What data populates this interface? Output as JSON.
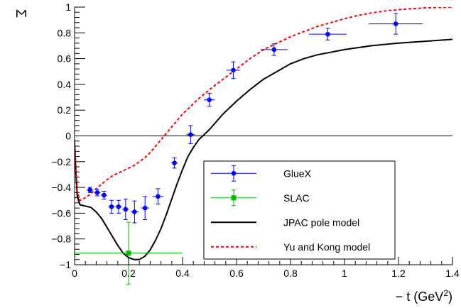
{
  "chart_data": {
    "type": "scatter",
    "ylabel_symbol": "Σ",
    "xlabel_main": "− t (GeV",
    "xlabel_sup": "2",
    "xlabel_close": ")",
    "xlim": [
      0,
      1.4
    ],
    "ylim": [
      -1,
      1
    ],
    "x_ticks": [
      {
        "value": 0,
        "label": "0"
      },
      {
        "value": 0.2,
        "label": "0.2"
      },
      {
        "value": 0.4,
        "label": "0.4"
      },
      {
        "value": 0.6,
        "label": "0.6"
      },
      {
        "value": 0.8,
        "label": "0.8"
      },
      {
        "value": 1.0,
        "label": "1"
      },
      {
        "value": 1.2,
        "label": "1.2"
      },
      {
        "value": 1.4,
        "label": "1.4"
      }
    ],
    "y_ticks": [
      {
        "value": -1,
        "label": "−1"
      },
      {
        "value": -0.8,
        "label": "−0.8"
      },
      {
        "value": -0.6,
        "label": "−0.6"
      },
      {
        "value": -0.4,
        "label": "−0.4"
      },
      {
        "value": -0.2,
        "label": "−0.2"
      },
      {
        "value": 0,
        "label": "0"
      },
      {
        "value": 0.2,
        "label": "0.2"
      },
      {
        "value": 0.4,
        "label": "0.4"
      },
      {
        "value": 0.6,
        "label": "0.6"
      },
      {
        "value": 0.8,
        "label": "0.8"
      },
      {
        "value": 1,
        "label": "1"
      }
    ],
    "zero_line": true,
    "legend_position": "bottom-right",
    "series": [
      {
        "name": "GlueX",
        "kind": "points",
        "marker": "circle",
        "color": "#0000ff",
        "points": [
          {
            "x": 0.057,
            "y": -0.42,
            "xerr": 0.012,
            "yerr": 0.02
          },
          {
            "x": 0.084,
            "y": -0.44,
            "xerr": 0.012,
            "yerr": 0.025
          },
          {
            "x": 0.109,
            "y": -0.46,
            "xerr": 0.012,
            "yerr": 0.03
          },
          {
            "x": 0.137,
            "y": -0.55,
            "xerr": 0.012,
            "yerr": 0.05
          },
          {
            "x": 0.163,
            "y": -0.55,
            "xerr": 0.012,
            "yerr": 0.05
          },
          {
            "x": 0.189,
            "y": -0.57,
            "xerr": 0.012,
            "yerr": 0.08
          },
          {
            "x": 0.222,
            "y": -0.59,
            "xerr": 0.015,
            "yerr": 0.085
          },
          {
            "x": 0.261,
            "y": -0.56,
            "xerr": 0.015,
            "yerr": 0.09
          },
          {
            "x": 0.309,
            "y": -0.47,
            "xerr": 0.02,
            "yerr": 0.06
          },
          {
            "x": 0.37,
            "y": -0.21,
            "xerr": 0.012,
            "yerr": 0.04
          },
          {
            "x": 0.43,
            "y": 0.01,
            "xerr": 0.015,
            "yerr": 0.07
          },
          {
            "x": 0.499,
            "y": 0.28,
            "xerr": 0.02,
            "yerr": 0.05
          },
          {
            "x": 0.588,
            "y": 0.51,
            "xerr": 0.025,
            "yerr": 0.065
          },
          {
            "x": 0.739,
            "y": 0.67,
            "xerr": 0.05,
            "yerr": 0.045
          },
          {
            "x": 0.938,
            "y": 0.79,
            "xerr": 0.07,
            "yerr": 0.045
          },
          {
            "x": 1.19,
            "y": 0.87,
            "xerr": 0.1,
            "yerr": 0.08
          }
        ]
      },
      {
        "name": "SLAC",
        "kind": "points",
        "marker": "square",
        "color": "#00bb00",
        "points": [
          {
            "x": 0.2,
            "y": -0.91,
            "xerr": 0.2,
            "yerr": 0.24
          }
        ]
      },
      {
        "name": "JPAC pole model",
        "kind": "line",
        "color": "#000000",
        "dash": "",
        "points": [
          {
            "x": 0.0,
            "y": -0.05
          },
          {
            "x": 0.005,
            "y": -0.3
          },
          {
            "x": 0.01,
            "y": -0.47
          },
          {
            "x": 0.02,
            "y": -0.535
          },
          {
            "x": 0.04,
            "y": -0.545
          },
          {
            "x": 0.06,
            "y": -0.555
          },
          {
            "x": 0.08,
            "y": -0.59
          },
          {
            "x": 0.1,
            "y": -0.64
          },
          {
            "x": 0.12,
            "y": -0.71
          },
          {
            "x": 0.14,
            "y": -0.78
          },
          {
            "x": 0.16,
            "y": -0.85
          },
          {
            "x": 0.18,
            "y": -0.91
          },
          {
            "x": 0.2,
            "y": -0.945
          },
          {
            "x": 0.22,
            "y": -0.96
          },
          {
            "x": 0.24,
            "y": -0.96
          },
          {
            "x": 0.26,
            "y": -0.935
          },
          {
            "x": 0.28,
            "y": -0.885
          },
          {
            "x": 0.3,
            "y": -0.81
          },
          {
            "x": 0.32,
            "y": -0.72
          },
          {
            "x": 0.34,
            "y": -0.61
          },
          {
            "x": 0.36,
            "y": -0.49
          },
          {
            "x": 0.38,
            "y": -0.37
          },
          {
            "x": 0.4,
            "y": -0.26
          },
          {
            "x": 0.42,
            "y": -0.16
          },
          {
            "x": 0.44,
            "y": -0.09
          },
          {
            "x": 0.46,
            "y": -0.03
          },
          {
            "x": 0.5,
            "y": 0.05
          },
          {
            "x": 0.55,
            "y": 0.17
          },
          {
            "x": 0.6,
            "y": 0.27
          },
          {
            "x": 0.65,
            "y": 0.36
          },
          {
            "x": 0.7,
            "y": 0.44
          },
          {
            "x": 0.75,
            "y": 0.5
          },
          {
            "x": 0.8,
            "y": 0.56
          },
          {
            "x": 0.85,
            "y": 0.6
          },
          {
            "x": 0.9,
            "y": 0.63
          },
          {
            "x": 1.0,
            "y": 0.67
          },
          {
            "x": 1.1,
            "y": 0.7
          },
          {
            "x": 1.2,
            "y": 0.72
          },
          {
            "x": 1.3,
            "y": 0.735
          },
          {
            "x": 1.4,
            "y": 0.75
          }
        ]
      },
      {
        "name": "Yu and Kong model",
        "kind": "line",
        "color": "#ff0000",
        "dash": "4,3",
        "points": [
          {
            "x": 0.0,
            "y": -0.03
          },
          {
            "x": 0.005,
            "y": -0.25
          },
          {
            "x": 0.01,
            "y": -0.43
          },
          {
            "x": 0.02,
            "y": -0.5
          },
          {
            "x": 0.04,
            "y": -0.48
          },
          {
            "x": 0.06,
            "y": -0.45
          },
          {
            "x": 0.08,
            "y": -0.41
          },
          {
            "x": 0.1,
            "y": -0.375
          },
          {
            "x": 0.12,
            "y": -0.34
          },
          {
            "x": 0.14,
            "y": -0.31
          },
          {
            "x": 0.16,
            "y": -0.29
          },
          {
            "x": 0.18,
            "y": -0.27
          },
          {
            "x": 0.2,
            "y": -0.25
          },
          {
            "x": 0.22,
            "y": -0.23
          },
          {
            "x": 0.24,
            "y": -0.2
          },
          {
            "x": 0.26,
            "y": -0.17
          },
          {
            "x": 0.28,
            "y": -0.13
          },
          {
            "x": 0.3,
            "y": -0.08
          },
          {
            "x": 0.32,
            "y": -0.03
          },
          {
            "x": 0.34,
            "y": 0.02
          },
          {
            "x": 0.36,
            "y": 0.07
          },
          {
            "x": 0.38,
            "y": 0.12
          },
          {
            "x": 0.4,
            "y": 0.17
          },
          {
            "x": 0.43,
            "y": 0.23
          },
          {
            "x": 0.46,
            "y": 0.29
          },
          {
            "x": 0.5,
            "y": 0.36
          },
          {
            "x": 0.55,
            "y": 0.44
          },
          {
            "x": 0.6,
            "y": 0.52
          },
          {
            "x": 0.65,
            "y": 0.6
          },
          {
            "x": 0.7,
            "y": 0.67
          },
          {
            "x": 0.75,
            "y": 0.72
          },
          {
            "x": 0.8,
            "y": 0.77
          },
          {
            "x": 0.85,
            "y": 0.81
          },
          {
            "x": 0.9,
            "y": 0.85
          },
          {
            "x": 0.95,
            "y": 0.88
          },
          {
            "x": 1.0,
            "y": 0.91
          },
          {
            "x": 1.05,
            "y": 0.935
          },
          {
            "x": 1.1,
            "y": 0.955
          },
          {
            "x": 1.15,
            "y": 0.97
          },
          {
            "x": 1.2,
            "y": 0.98
          },
          {
            "x": 1.25,
            "y": 0.988
          },
          {
            "x": 1.3,
            "y": 0.994
          },
          {
            "x": 1.35,
            "y": 0.998
          },
          {
            "x": 1.4,
            "y": 1.0
          }
        ]
      }
    ]
  }
}
